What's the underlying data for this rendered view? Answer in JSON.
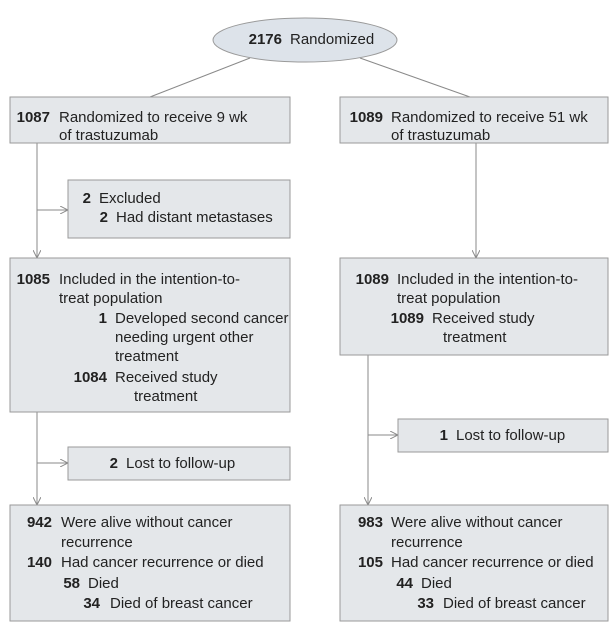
{
  "boxes": [
    {
      "lines": [
        {
          "n": 2176,
          "t": "Randomized"
        }
      ]
    },
    {
      "lines": [
        {
          "n": 1087,
          "t": "Randomized to receive 9 wk"
        },
        {
          "t": "of trastuzumab"
        }
      ]
    },
    {
      "lines": [
        {
          "n": 1089,
          "t": "Randomized to receive 51 wk"
        },
        {
          "t": "of trastuzumab"
        }
      ]
    },
    {
      "lines": [
        {
          "n": 2,
          "t": "Excluded"
        },
        {
          "n": 2,
          "t": "Had distant metastases"
        }
      ]
    },
    {
      "lines": [
        {
          "n": 1085,
          "t": "Included in the intention-to-"
        },
        {
          "t": "treat population"
        },
        {
          "n": 1,
          "t": "Developed second cancer"
        },
        {
          "t": "needing urgent other"
        },
        {
          "t": "treatment"
        },
        {
          "n": 1084,
          "t": "Received study"
        },
        {
          "t": "treatment"
        }
      ]
    },
    {
      "lines": [
        {
          "n": 1089,
          "t": "Included in the intention-to-"
        },
        {
          "t": "treat population"
        },
        {
          "n": 1089,
          "t": "Received study"
        },
        {
          "t": "treatment"
        }
      ]
    },
    {
      "lines": [
        {
          "n": 2,
          "t": "Lost to follow-up"
        }
      ]
    },
    {
      "lines": [
        {
          "n": 1,
          "t": "Lost to follow-up"
        }
      ]
    },
    {
      "lines": [
        {
          "n": 942,
          "t": "Were alive without cancer"
        },
        {
          "t": "recurrence"
        },
        {
          "n": 140,
          "t": "Had cancer recurrence or died"
        },
        {
          "n": 58,
          "t": "Died"
        },
        {
          "n": 34,
          "t": "Died of breast cancer"
        }
      ]
    },
    {
      "lines": [
        {
          "n": 983,
          "t": "Were alive without cancer"
        },
        {
          "t": "recurrence"
        },
        {
          "n": 105,
          "t": "Had cancer recurrence or died"
        },
        {
          "n": 44,
          "t": "Died"
        },
        {
          "n": 33,
          "t": "Died of breast cancer"
        }
      ]
    }
  ]
}
